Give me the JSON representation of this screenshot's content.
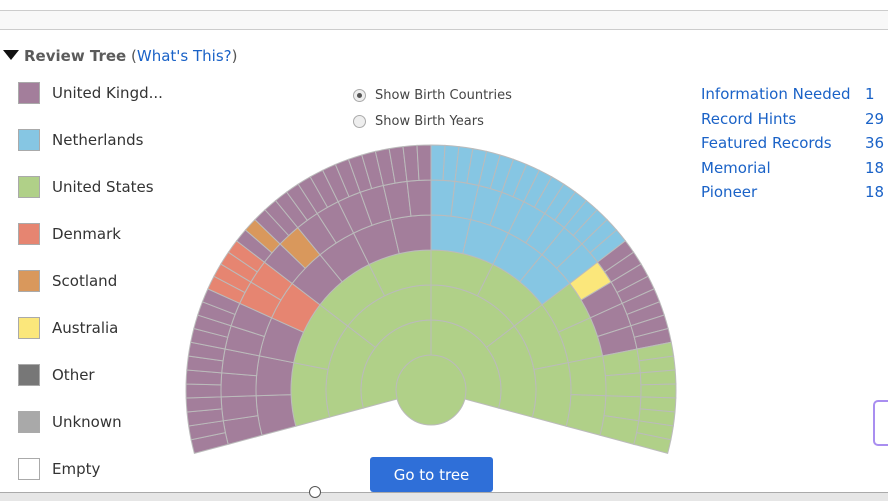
{
  "header": {
    "title": "Review Tree",
    "whats_this": "What's This?",
    "open_paren": "(",
    "close_paren": ")"
  },
  "legend": [
    {
      "code": "U",
      "label": "United Kingd...",
      "color": "#a37e9b"
    },
    {
      "code": "N",
      "label": "Netherlands",
      "color": "#86c6e3"
    },
    {
      "code": "S",
      "label": "United States",
      "color": "#b0d088"
    },
    {
      "code": "D",
      "label": "Denmark",
      "color": "#e68571"
    },
    {
      "code": "C",
      "label": "Scotland",
      "color": "#d9985c"
    },
    {
      "code": "A",
      "label": "Australia",
      "color": "#fbe77b"
    },
    {
      "code": "O",
      "label": "Other",
      "color": "#777777"
    },
    {
      "code": "K",
      "label": "Unknown",
      "color": "#a9a9a9"
    },
    {
      "code": "E",
      "label": "Empty",
      "color": "#ffffff"
    }
  ],
  "view_options": [
    {
      "label": "Show Birth Countries",
      "selected": true
    },
    {
      "label": "Show Birth Years",
      "selected": false
    }
  ],
  "stats": [
    {
      "label": "Information Needed",
      "count": "1"
    },
    {
      "label": "Record Hints",
      "count": "29"
    },
    {
      "label": "Featured Records",
      "count": "36"
    },
    {
      "label": "Memorial",
      "count": "18"
    },
    {
      "label": "Pioneer",
      "count": "18"
    }
  ],
  "fan_generations": [
    "S",
    "SS",
    "SSSS",
    "SSSSSSSS",
    "UUUDUUUUNNNNSSSS",
    "UUUUUUDDUCUUUUUUNNNNNNNNAUUUSSSS",
    "UUUUUUUUUUUUDDDDUCUUUUUUUUUUUUUUNNNNNNNNNNNNNNNNUUUUUUUUSSSSSSSS"
  ],
  "go_button": "Go to tree"
}
